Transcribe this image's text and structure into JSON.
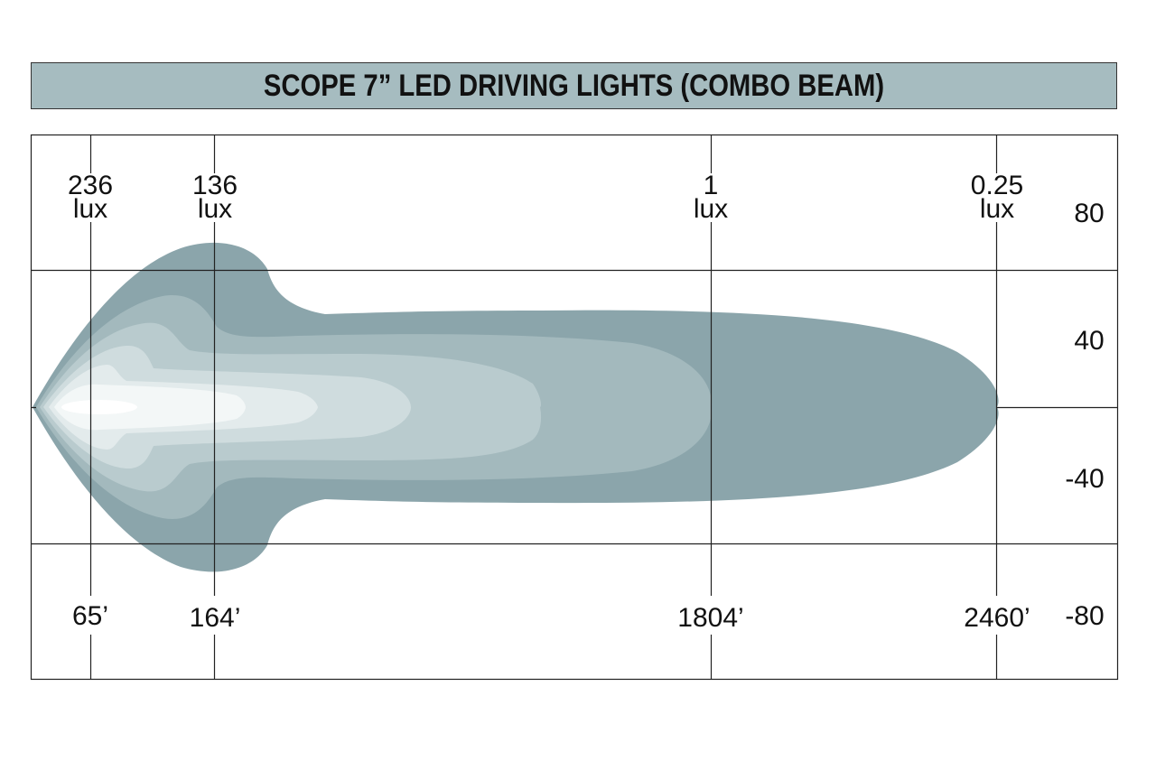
{
  "title": "SCOPE 7” LED DRIVING LIGHTS (COMBO BEAM)",
  "colors": {
    "title_bar": "#a6bcc0",
    "beam_outer": "#8ba5ab",
    "beam_1": "#a3b9bd",
    "beam_2": "#b9cbce",
    "beam_3": "#cfdcde",
    "beam_4": "#e3ebec",
    "beam_5": "#f3f7f7",
    "beam_hot": "#ffffff",
    "grid": "#222222"
  },
  "chart_data": {
    "type": "area",
    "description_axis_x": "distance",
    "y_ticks": [
      "80",
      "40",
      "-40",
      "-80"
    ],
    "y_values": [
      80,
      40,
      -40,
      -80
    ],
    "x_markers": [
      {
        "lux": "236",
        "unit": "lux",
        "distance": "65’"
      },
      {
        "lux": "136",
        "unit": "lux",
        "distance": "164’"
      },
      {
        "lux": "1",
        "unit": "lux",
        "distance": "1804’"
      },
      {
        "lux": "0.25",
        "unit": "lux",
        "distance": "2460’"
      }
    ],
    "isolux_lux_values": [
      236,
      136,
      1,
      0.25
    ],
    "beam_reach_ft": 2460
  }
}
